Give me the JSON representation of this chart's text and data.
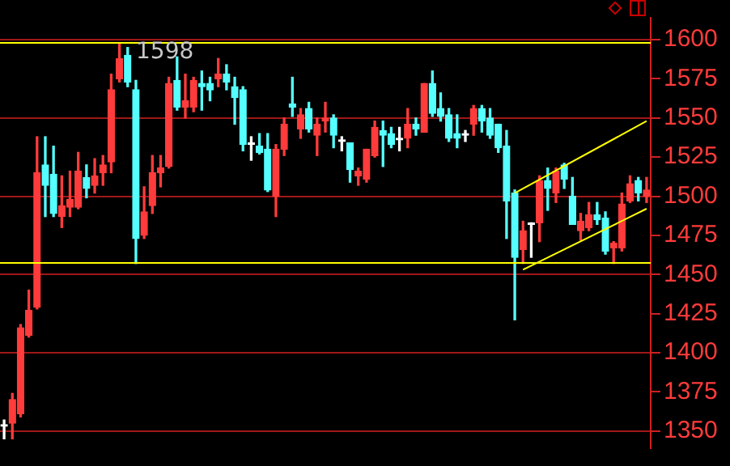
{
  "chart_data": {
    "type": "candlestick",
    "categories": [
      null,
      null,
      null,
      null,
      null,
      null,
      null,
      null,
      null,
      null,
      null,
      null,
      null,
      null,
      null,
      null,
      null,
      null,
      null,
      null,
      null,
      null,
      null,
      null,
      null,
      null,
      null,
      null,
      null,
      null,
      null,
      null,
      null,
      null,
      null,
      null,
      null,
      null,
      null,
      null,
      null,
      null,
      null,
      null,
      null,
      null,
      null,
      null,
      null,
      null,
      null,
      null,
      null,
      null,
      null,
      null,
      null,
      null,
      null,
      null,
      null,
      null,
      null,
      null,
      null,
      null,
      null,
      null,
      null,
      null,
      null,
      null,
      null,
      null,
      null,
      null,
      null,
      null,
      null
    ],
    "ohlc": [
      [
        1353,
        1357,
        1345,
        1353
      ],
      [
        1355,
        1374,
        1345,
        1370
      ],
      [
        1361,
        1418,
        1359,
        1416
      ],
      [
        1411,
        1440,
        1410,
        1427
      ],
      [
        1429,
        1538,
        1428,
        1515
      ],
      [
        1520,
        1538,
        1487,
        1507
      ],
      [
        1514,
        1532,
        1487,
        1489
      ],
      [
        1487,
        1513,
        1480,
        1494
      ],
      [
        1493,
        1516,
        1487,
        1498
      ],
      [
        1493,
        1528,
        1492,
        1516
      ],
      [
        1512,
        1520,
        1499,
        1505
      ],
      [
        1507,
        1524,
        1502,
        1513
      ],
      [
        1515,
        1526,
        1507,
        1520
      ],
      [
        1522,
        1578,
        1515,
        1568
      ],
      [
        1575,
        1598,
        1573,
        1588
      ],
      [
        1590,
        1595,
        1570,
        1573
      ],
      [
        1568,
        1574,
        1457,
        1473
      ],
      [
        1475,
        1506,
        1473,
        1490
      ],
      [
        1494,
        1526,
        1489,
        1515
      ],
      [
        1515,
        1526,
        1506,
        1518
      ],
      [
        1519,
        1576,
        1518,
        1572
      ],
      [
        1574,
        1589,
        1555,
        1557
      ],
      [
        1557,
        1578,
        1550,
        1561
      ],
      [
        1557,
        1576,
        1554,
        1574
      ],
      [
        1572,
        1580,
        1555,
        1570
      ],
      [
        1572,
        1576,
        1561,
        1568
      ],
      [
        1575,
        1588,
        1570,
        1578
      ],
      [
        1578,
        1584,
        1568,
        1573
      ],
      [
        1570,
        1576,
        1546,
        1563
      ],
      [
        1568,
        1570,
        1529,
        1533
      ],
      [
        1533,
        1538,
        1523,
        1533
      ],
      [
        1532,
        1540,
        1527,
        1528
      ],
      [
        1530,
        1540,
        1503,
        1504
      ],
      [
        1500,
        1533,
        1487,
        1530
      ],
      [
        1530,
        1550,
        1526,
        1546
      ],
      [
        1559,
        1576,
        1551,
        1557
      ],
      [
        1543,
        1556,
        1537,
        1552
      ],
      [
        1556,
        1560,
        1541,
        1543
      ],
      [
        1539,
        1550,
        1526,
        1546
      ],
      [
        1548,
        1560,
        1541,
        1550
      ],
      [
        1550,
        1552,
        1531,
        1539
      ],
      [
        1535,
        1538,
        1529,
        1535
      ],
      [
        1534,
        1534,
        1509,
        1517
      ],
      [
        1513,
        1518,
        1507,
        1516
      ],
      [
        1511,
        1530,
        1509,
        1530
      ],
      [
        1526,
        1548,
        1525,
        1544
      ],
      [
        1542,
        1548,
        1519,
        1539
      ],
      [
        1540,
        1544,
        1531,
        1533
      ],
      [
        1536,
        1544,
        1529,
        1536
      ],
      [
        1537,
        1556,
        1531,
        1546
      ],
      [
        1546,
        1550,
        1539,
        1543
      ],
      [
        1541,
        1572,
        1541,
        1572
      ],
      [
        1572,
        1580,
        1551,
        1553
      ],
      [
        1556,
        1566,
        1548,
        1551
      ],
      [
        1552,
        1556,
        1535,
        1537
      ],
      [
        1540,
        1552,
        1531,
        1537
      ],
      [
        1539,
        1542,
        1535,
        1539
      ],
      [
        1546,
        1558,
        1539,
        1556
      ],
      [
        1556,
        1558,
        1541,
        1548
      ],
      [
        1550,
        1556,
        1537,
        1539
      ],
      [
        1546,
        1546,
        1528,
        1531
      ],
      [
        1532,
        1542,
        1473,
        1497
      ],
      [
        1502,
        1504,
        1421,
        1461
      ],
      [
        1466,
        1484,
        1457,
        1478
      ],
      [
        1482,
        1483,
        1461,
        1482
      ],
      [
        1483,
        1513,
        1471,
        1510
      ],
      [
        1510,
        1518,
        1491,
        1505
      ],
      [
        1502,
        1518,
        1496,
        1516
      ],
      [
        1520,
        1521,
        1505,
        1511
      ],
      [
        1500,
        1512,
        1482,
        1482
      ],
      [
        1478,
        1489,
        1472,
        1484
      ],
      [
        1480,
        1496,
        1478,
        1488
      ],
      [
        1488,
        1496,
        1482,
        1485
      ],
      [
        1486,
        1490,
        1463,
        1465
      ],
      [
        1467,
        1471,
        1457,
        1470
      ],
      [
        1467,
        1502,
        1465,
        1495
      ],
      [
        1497,
        1513,
        1496,
        1508
      ],
      [
        1510,
        1512,
        1497,
        1502
      ],
      [
        1500,
        1512,
        1496,
        1504
      ]
    ],
    "colors": [
      "#ffffff",
      "#ff3b3b",
      "#ff3b3b",
      "#ff3b3b",
      "#ff3b3b",
      "#55ffff",
      "#55ffff",
      "#ff3b3b",
      "#ff3b3b",
      "#ff3b3b",
      "#55ffff",
      "#ff3b3b",
      "#ff3b3b",
      "#ff3b3b",
      "#ff3b3b",
      "#55ffff",
      "#55ffff",
      "#ff3b3b",
      "#ff3b3b",
      "#ff3b3b",
      "#ff3b3b",
      "#55ffff",
      "#ff3b3b",
      "#ff3b3b",
      "#55ffff",
      "#55ffff",
      "#ff3b3b",
      "#55ffff",
      "#55ffff",
      "#55ffff",
      "#ffffff",
      "#55ffff",
      "#55ffff",
      "#ff3b3b",
      "#ff3b3b",
      "#55ffff",
      "#ff3b3b",
      "#55ffff",
      "#ff3b3b",
      "#ff3b3b",
      "#55ffff",
      "#ffffff",
      "#55ffff",
      "#ff3b3b",
      "#ff3b3b",
      "#ff3b3b",
      "#55ffff",
      "#55ffff",
      "#ffffff",
      "#ff3b3b",
      "#55ffff",
      "#ff3b3b",
      "#55ffff",
      "#55ffff",
      "#55ffff",
      "#55ffff",
      "#ffffff",
      "#ff3b3b",
      "#55ffff",
      "#55ffff",
      "#55ffff",
      "#55ffff",
      "#55ffff",
      "#ff3b3b",
      "#ffffff",
      "#ff3b3b",
      "#55ffff",
      "#ff3b3b",
      "#55ffff",
      "#55ffff",
      "#ff3b3b",
      "#ff3b3b",
      "#55ffff",
      "#55ffff",
      "#ff3b3b",
      "#ff3b3b",
      "#ff3b3b",
      "#55ffff",
      "#ff3b3b"
    ],
    "series": [
      {
        "type": "line",
        "color": "#ffff00",
        "values": [
          null,
          null,
          null,
          null,
          null,
          null,
          null,
          null,
          null,
          null,
          null,
          null,
          null,
          null,
          null,
          null,
          null,
          null,
          null,
          null,
          null,
          null,
          null,
          null,
          null,
          null,
          null,
          null,
          null,
          null,
          null,
          null,
          null,
          null,
          null,
          null,
          null,
          null,
          null,
          null,
          null,
          null,
          null,
          null,
          null,
          null,
          null,
          null,
          null,
          null,
          null,
          null,
          null,
          null,
          null,
          null,
          null,
          null,
          null,
          null,
          null,
          null,
          1502,
          null,
          null,
          null,
          null,
          null,
          null,
          null,
          null,
          null,
          null,
          null,
          null,
          null,
          null,
          null,
          1548
        ]
      },
      {
        "type": "line",
        "color": "#ffff00",
        "values": [
          null,
          null,
          null,
          null,
          null,
          null,
          null,
          null,
          null,
          null,
          null,
          null,
          null,
          null,
          null,
          null,
          null,
          null,
          null,
          null,
          null,
          null,
          null,
          null,
          null,
          null,
          null,
          null,
          null,
          null,
          null,
          null,
          null,
          null,
          null,
          null,
          null,
          null,
          null,
          null,
          null,
          null,
          null,
          null,
          null,
          null,
          null,
          null,
          null,
          null,
          null,
          null,
          null,
          null,
          null,
          null,
          null,
          null,
          null,
          null,
          null,
          null,
          null,
          1453,
          null,
          null,
          null,
          null,
          null,
          null,
          null,
          null,
          null,
          null,
          null,
          null,
          null,
          null,
          1492
        ]
      }
    ],
    "ref_lines": [
      {
        "axis": "y",
        "value": 1598,
        "label": "1598",
        "color": "#ffff00"
      },
      {
        "axis": "y",
        "value": 1458,
        "color": "#ffff00"
      }
    ],
    "ylim": [
      1339,
      1614
    ],
    "yticks": [
      1350,
      1375,
      1400,
      1425,
      1450,
      1475,
      1500,
      1525,
      1550,
      1575,
      1600
    ],
    "tick_labels": "y",
    "grid": "y"
  }
}
